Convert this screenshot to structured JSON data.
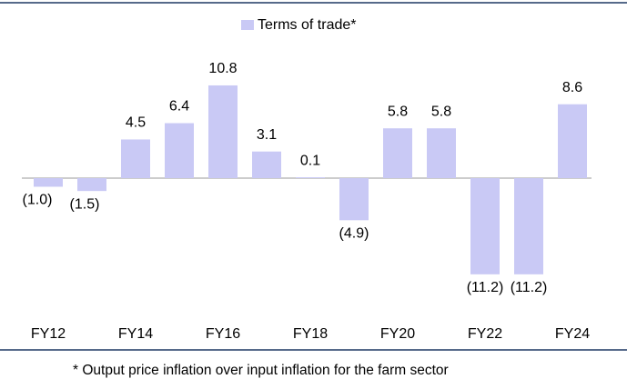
{
  "chart_data": {
    "type": "bar",
    "legend": "Terms of trade*",
    "footnote": "* Output price inflation over input inflation for the farm sector",
    "categories": [
      "FY12",
      null,
      "FY14",
      null,
      "FY16",
      null,
      "FY18",
      null,
      "FY20",
      null,
      "FY22",
      null,
      "FY24"
    ],
    "values": [
      -1.0,
      -1.5,
      4.5,
      6.4,
      10.8,
      3.1,
      0.1,
      -4.9,
      5.8,
      5.8,
      -11.2,
      -11.2,
      8.6
    ],
    "value_labels": [
      "(1.0)",
      "(1.5)",
      "4.5",
      "6.4",
      "10.8",
      "3.1",
      "0.1",
      "(4.9)",
      "5.8",
      "5.8",
      "(11.2)",
      "(11.2)",
      "8.6"
    ],
    "color": "#c9c9f5",
    "negative_label_color": "#e00000"
  }
}
